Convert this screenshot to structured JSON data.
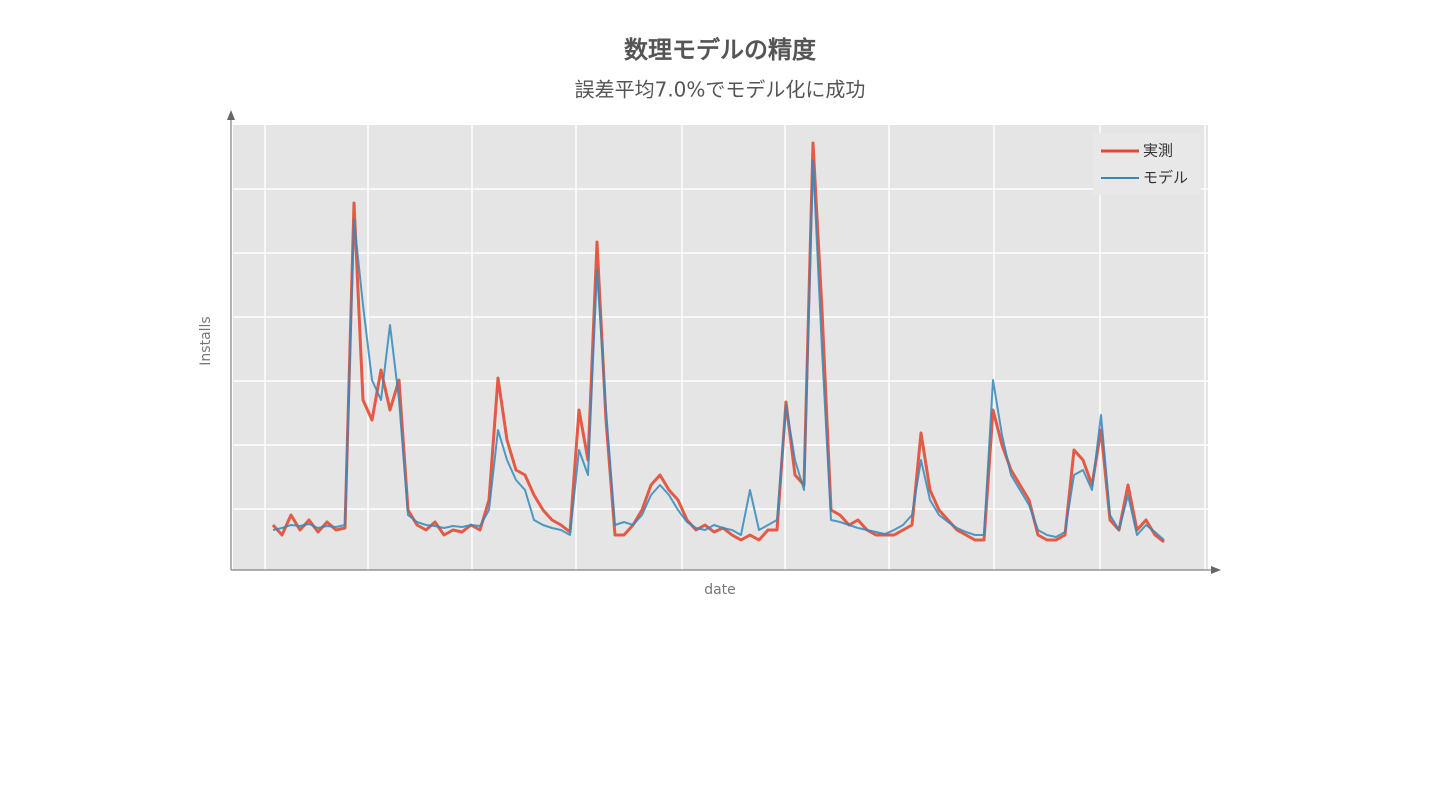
{
  "chart_data": {
    "type": "line",
    "title": "数理モデルの精度",
    "subtitle": "誤差平均7.0%でモデル化に成功",
    "x_label": "date",
    "y_label": "Installs",
    "x": [
      0,
      1,
      2,
      3,
      4,
      5,
      6,
      7,
      8,
      9,
      10,
      11,
      12,
      13,
      14,
      15,
      16,
      17,
      18,
      19,
      20,
      21,
      22,
      23,
      24,
      25,
      26,
      27,
      28,
      29,
      30,
      31,
      32,
      33,
      34,
      35,
      36,
      37,
      38,
      39,
      40,
      41,
      42,
      43,
      44,
      45,
      46,
      47,
      48,
      49,
      50,
      51,
      52,
      53,
      54,
      55,
      56,
      57,
      58,
      59,
      60,
      61,
      62,
      63,
      64,
      65,
      66,
      67,
      68,
      69,
      70,
      71,
      72,
      73,
      74,
      75,
      76,
      77,
      78,
      79,
      80,
      81,
      82,
      83,
      84,
      85,
      86,
      87,
      88,
      89,
      90,
      91,
      92,
      93,
      94,
      95,
      96,
      97,
      98,
      99
    ],
    "xlim": [
      -4.67,
      104.11
    ],
    "ylim": [
      0,
      445
    ],
    "grid": true,
    "legend": "upper right",
    "series": [
      {
        "name": "実測",
        "color": "#e24a33",
        "values": [
          45,
          35,
          55,
          40,
          50,
          38,
          48,
          40,
          42,
          367,
          170,
          150,
          200,
          160,
          190,
          60,
          45,
          40,
          48,
          35,
          40,
          38,
          45,
          40,
          70,
          192,
          130,
          100,
          95,
          75,
          60,
          50,
          45,
          38,
          160,
          110,
          328,
          150,
          35,
          35,
          45,
          60,
          85,
          95,
          80,
          70,
          50,
          40,
          45,
          38,
          42,
          35,
          30,
          35,
          30,
          40,
          40,
          168,
          95,
          85,
          427,
          260,
          60,
          55,
          45,
          50,
          40,
          35,
          35,
          35,
          40,
          45,
          137,
          80,
          60,
          50,
          40,
          35,
          30,
          30,
          160,
          125,
          100,
          85,
          70,
          35,
          30,
          30,
          35,
          120,
          110,
          85,
          140,
          50,
          40,
          85,
          40,
          50,
          35,
          28
        ]
      },
      {
        "name": "モデル",
        "color": "#348abd",
        "values": [
          40,
          42,
          45,
          44,
          46,
          42,
          44,
          43,
          45,
          350,
          265,
          190,
          170,
          245,
          170,
          55,
          48,
          45,
          44,
          42,
          44,
          43,
          45,
          44,
          60,
          140,
          110,
          90,
          80,
          50,
          45,
          42,
          40,
          35,
          120,
          95,
          300,
          160,
          45,
          48,
          45,
          55,
          75,
          85,
          75,
          60,
          48,
          42,
          40,
          45,
          42,
          40,
          35,
          80,
          40,
          45,
          50,
          165,
          110,
          80,
          410,
          220,
          50,
          48,
          45,
          42,
          40,
          38,
          36,
          40,
          45,
          55,
          110,
          70,
          55,
          48,
          42,
          38,
          35,
          35,
          190,
          135,
          95,
          80,
          65,
          40,
          35,
          33,
          38,
          95,
          100,
          80,
          155,
          55,
          40,
          75,
          35,
          45,
          38,
          30
        ]
      }
    ]
  }
}
